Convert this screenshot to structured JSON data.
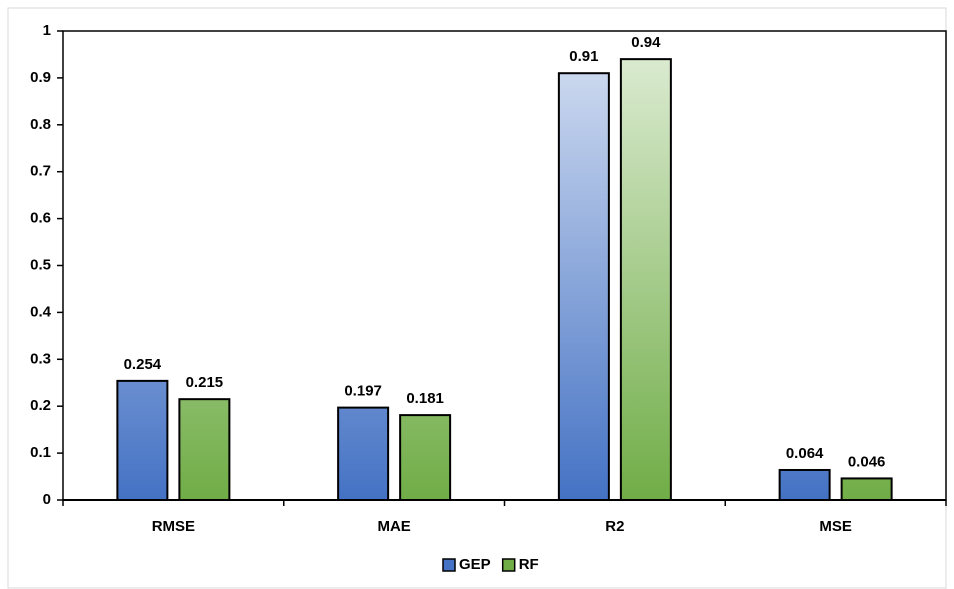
{
  "chart_data": {
    "type": "bar",
    "categories": [
      "RMSE",
      "MAE",
      "R2",
      "MSE"
    ],
    "series": [
      {
        "name": "GEP",
        "color": "#4472c4",
        "values": [
          0.254,
          0.197,
          0.91,
          0.064
        ]
      },
      {
        "name": "RF",
        "color": "#70ad47",
        "values": [
          0.215,
          0.181,
          0.94,
          0.046
        ]
      }
    ],
    "ylim": [
      0,
      1
    ],
    "yticks": [
      0,
      0.1,
      0.2,
      0.3,
      0.4,
      0.5,
      0.6,
      0.7,
      0.8,
      0.9,
      1
    ],
    "legend": "bottom"
  }
}
